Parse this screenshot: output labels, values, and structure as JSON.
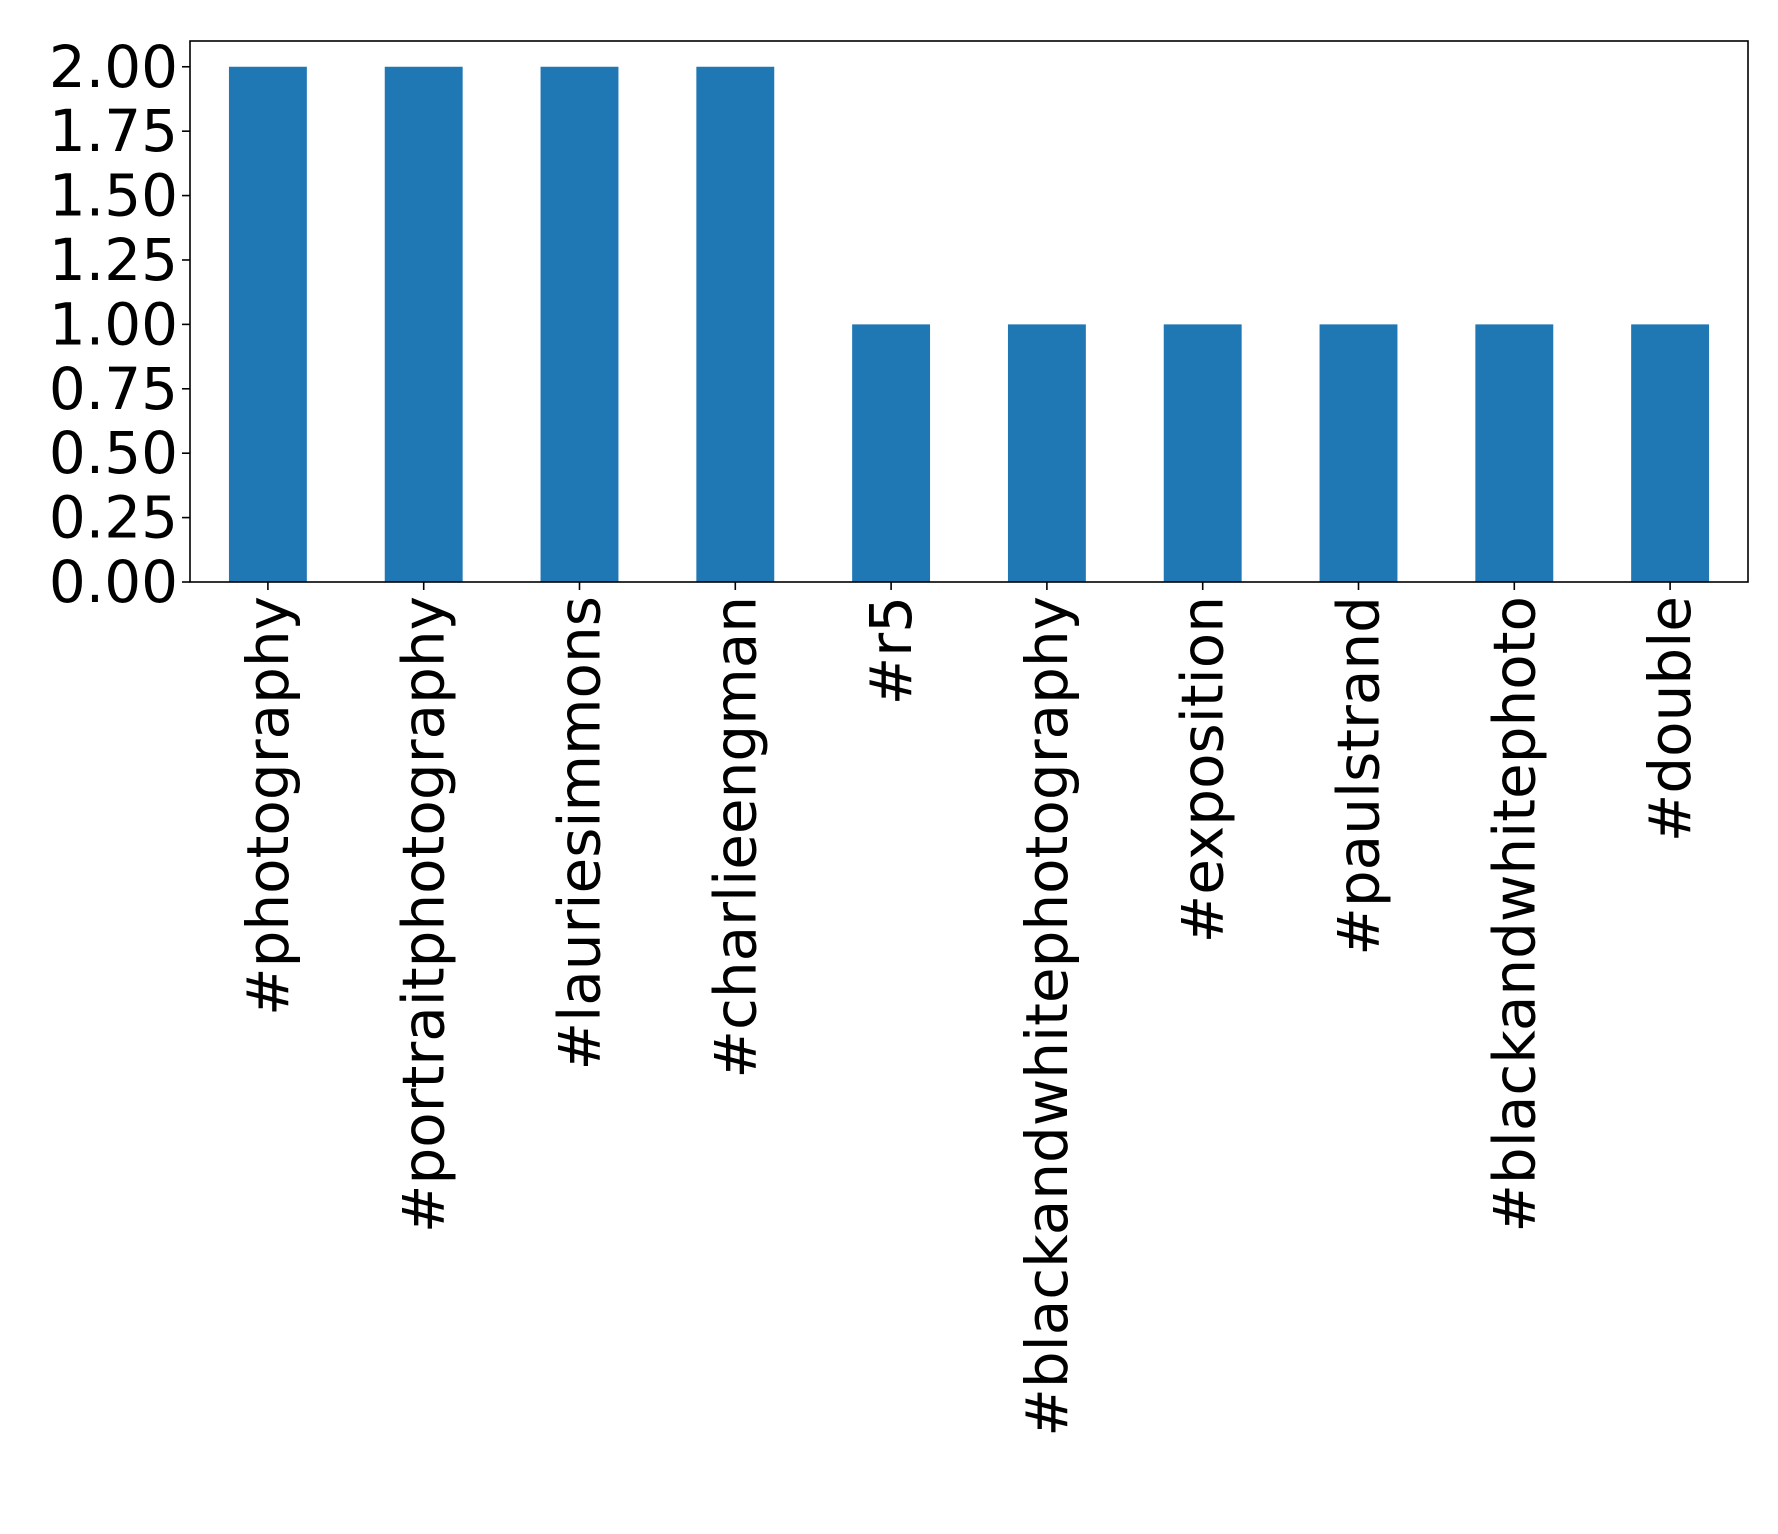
{
  "chart_data": {
    "type": "bar",
    "categories": [
      "#photography",
      "#portraitphotography",
      "#lauriesimmons",
      "#charlieengman",
      "#r5",
      "#blackandwhitephotography",
      "#exposition",
      "#paulstrand",
      "#blackandwhitephoto",
      "#double"
    ],
    "values": [
      2,
      2,
      2,
      2,
      1,
      1,
      1,
      1,
      1,
      1
    ],
    "title": "",
    "xlabel": "",
    "ylabel": "",
    "ylim": [
      0,
      2.1
    ],
    "yticks": [
      "0.00",
      "0.25",
      "0.50",
      "0.75",
      "1.00",
      "1.25",
      "1.50",
      "1.75",
      "2.00"
    ],
    "grid": false,
    "bar_color": "#1f77b4",
    "xtick_rotation": "vertical"
  }
}
